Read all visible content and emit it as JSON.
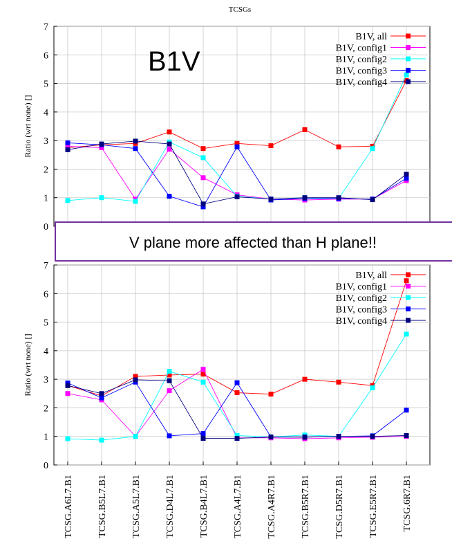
{
  "page": {
    "title": "TCSGs",
    "overlay_label": "B1V",
    "banner_text": "V plane more affected than H plane!!"
  },
  "chart_data": [
    {
      "type": "line",
      "ylabel": "Ratio (wrt none) []",
      "ylim": [
        0,
        7
      ],
      "yticks": [
        0,
        1,
        2,
        3,
        4,
        5,
        6,
        7
      ],
      "grid": true,
      "legend_position": "top-right",
      "categories": [
        "TCSG.A6L7.B1",
        "TCSG.B5L7.B1",
        "TCSG.A5L7.B1",
        "TCSG.D4L7.B1",
        "TCSG.B4L7.B1",
        "TCSG.A4L7.B1",
        "TCSG.A4R7.B1",
        "TCSG.B5R7.B1",
        "TCSG.D5R7.B1",
        "TCSG.E5R7.B1",
        "TCSG.6R7.B1"
      ],
      "series": [
        {
          "name": "B1V, all",
          "color": "#ff0000",
          "values": [
            2.75,
            2.85,
            2.9,
            3.3,
            2.72,
            2.9,
            2.82,
            3.38,
            2.78,
            2.8,
            5.1
          ]
        },
        {
          "name": "B1V, config1",
          "color": "#ff00ff",
          "values": [
            2.8,
            2.75,
            0.95,
            2.7,
            1.7,
            1.1,
            0.95,
            0.92,
            0.95,
            0.95,
            1.6
          ]
        },
        {
          "name": "B1V, config2",
          "color": "#00ffff",
          "values": [
            0.9,
            1.0,
            0.87,
            2.95,
            2.4,
            1.05,
            0.95,
            1.0,
            0.97,
            2.72,
            5.3
          ]
        },
        {
          "name": "B1V, config3",
          "color": "#0000ff",
          "values": [
            2.92,
            2.85,
            2.72,
            1.05,
            0.68,
            2.78,
            0.92,
            0.97,
            0.97,
            0.95,
            1.68
          ]
        },
        {
          "name": "B1V, config4",
          "color": "#00007f",
          "values": [
            2.68,
            2.88,
            2.98,
            2.88,
            0.78,
            1.03,
            0.95,
            1.0,
            1.0,
            0.93,
            1.82
          ]
        }
      ]
    },
    {
      "type": "line",
      "ylabel": "Ratio (wrt none) []",
      "ylim": [
        0,
        7
      ],
      "yticks": [
        0,
        1,
        2,
        3,
        4,
        5,
        6,
        7
      ],
      "grid": true,
      "legend_position": "top-right",
      "categories": [
        "TCSG.A6L7.B1",
        "TCSG.B5L7.B1",
        "TCSG.A5L7.B1",
        "TCSG.D4L7.B1",
        "TCSG.B4L7.B1",
        "TCSG.A4L7.B1",
        "TCSG.A4R7.B1",
        "TCSG.B5R7.B1",
        "TCSG.D5R7.B1",
        "TCSG.E5R7.B1",
        "TCSG.6R7.B1"
      ],
      "series": [
        {
          "name": "B1V, all",
          "color": "#ff0000",
          "values": [
            2.78,
            2.42,
            3.1,
            3.15,
            3.18,
            2.53,
            2.48,
            3.0,
            2.9,
            2.78,
            6.45
          ]
        },
        {
          "name": "B1V, config1",
          "color": "#ff00ff",
          "values": [
            2.5,
            2.28,
            1.0,
            2.6,
            3.35,
            0.95,
            0.95,
            0.92,
            0.95,
            0.97,
            1.0
          ]
        },
        {
          "name": "B1V, config2",
          "color": "#00ffff",
          "values": [
            0.92,
            0.87,
            1.0,
            3.28,
            2.9,
            1.03,
            0.98,
            1.05,
            1.0,
            2.7,
            4.58
          ]
        },
        {
          "name": "B1V, config3",
          "color": "#0000ff",
          "values": [
            2.87,
            2.35,
            2.9,
            1.02,
            1.1,
            2.88,
            0.98,
            0.98,
            1.0,
            1.02,
            1.92
          ]
        },
        {
          "name": "B1V, config4",
          "color": "#00007f",
          "values": [
            2.78,
            2.5,
            2.98,
            2.95,
            0.93,
            0.93,
            0.98,
            0.97,
            1.0,
            1.0,
            1.03
          ]
        }
      ]
    }
  ]
}
